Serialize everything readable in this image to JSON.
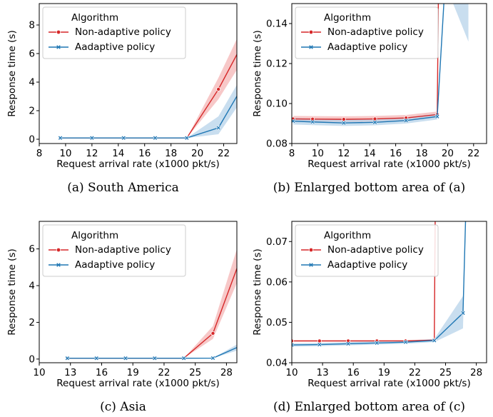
{
  "captions": [
    "(a) South America",
    "(b) Enlarged bottom area of (a)",
    "(c) Asia",
    "(d) Enlarged bottom area of (c)"
  ],
  "colors": {
    "non_adaptive": "#d62728",
    "adaptive": "#1f77b4",
    "non_adaptive_band": "#f4b6b6",
    "adaptive_band": "#b7d3ea"
  },
  "chart_data": [
    {
      "type": "line",
      "xlabel": "Request arrival rate (x1000 pkt/s)",
      "ylabel": "Response time (s)",
      "xlim": [
        8,
        23
      ],
      "ylim": [
        -0.3,
        9.5
      ],
      "xticks": [
        8,
        10,
        12,
        14,
        16,
        18,
        20,
        22
      ],
      "yticks": [
        0,
        2,
        4,
        6,
        8
      ],
      "ytick_labels": [
        "0",
        "2",
        "4",
        "6",
        "8"
      ],
      "legend": {
        "title": "Algorithm",
        "placement": "top-left"
      },
      "series": [
        {
          "name": "Non-adaptive policy",
          "color_key": "non_adaptive",
          "marker": "circle",
          "x": [
            9.6,
            12.0,
            14.4,
            16.8,
            19.2,
            21.6,
            23.5
          ],
          "y": [
            0.09,
            0.09,
            0.09,
            0.09,
            0.09,
            3.5,
            6.8
          ],
          "lower": [
            0.09,
            0.09,
            0.09,
            0.09,
            0.09,
            2.8,
            5.6
          ],
          "upper": [
            0.09,
            0.09,
            0.09,
            0.09,
            0.09,
            4.3,
            8.0
          ]
        },
        {
          "name": "Aadaptive policy",
          "color_key": "adaptive",
          "marker": "x",
          "x": [
            9.6,
            12.0,
            14.4,
            16.8,
            19.2,
            21.6,
            23.5
          ],
          "y": [
            0.09,
            0.09,
            0.09,
            0.09,
            0.09,
            0.8,
            3.8
          ],
          "lower": [
            0.09,
            0.09,
            0.09,
            0.09,
            0.09,
            0.35,
            2.9
          ],
          "upper": [
            0.09,
            0.09,
            0.09,
            0.09,
            0.09,
            1.6,
            4.6
          ]
        }
      ]
    },
    {
      "type": "line",
      "xlabel": "Request arrival rate (x1000 pkt/s)",
      "ylabel": "Response time (s)",
      "xlim": [
        8,
        23
      ],
      "ylim": [
        0.08,
        0.15
      ],
      "xticks": [
        8,
        10,
        12,
        14,
        16,
        18,
        20,
        22
      ],
      "yticks": [
        0.08,
        0.1,
        0.12,
        0.14
      ],
      "ytick_labels": [
        "0.08",
        "0.10",
        "0.12",
        "0.14"
      ],
      "legend": {
        "title": "Algorithm",
        "placement": "top-left"
      },
      "series": [
        {
          "name": "Non-adaptive policy",
          "color_key": "non_adaptive",
          "marker": "circle",
          "x": [
            8.1,
            9.6,
            12.0,
            14.4,
            16.8,
            19.2,
            19.3
          ],
          "y": [
            0.0923,
            0.0922,
            0.0921,
            0.0923,
            0.0928,
            0.0945,
            0.16
          ],
          "lower": [
            0.0908,
            0.0907,
            0.0906,
            0.0908,
            0.0913,
            0.093,
            0.16
          ],
          "upper": [
            0.0938,
            0.0937,
            0.0936,
            0.0938,
            0.0943,
            0.096,
            0.16
          ]
        },
        {
          "name": "Aadaptive policy",
          "color_key": "adaptive",
          "marker": "x",
          "x": [
            8.1,
            9.6,
            12.0,
            14.4,
            16.8,
            19.2,
            19.8
          ],
          "y": [
            0.0912,
            0.0908,
            0.0903,
            0.0906,
            0.0915,
            0.0935,
            0.16
          ],
          "lower": [
            0.0895,
            0.0892,
            0.0888,
            0.0891,
            0.09,
            0.092,
            0.16
          ],
          "upper": [
            0.0928,
            0.0924,
            0.0919,
            0.0921,
            0.093,
            0.095,
            0.16
          ],
          "band_tail": {
            "x": [
              19.2,
              19.8,
              21.6
            ],
            "lower": [
              0.092,
              0.16,
              0.131
            ],
            "upper": [
              0.095,
              0.16,
              0.16
            ]
          }
        }
      ]
    },
    {
      "type": "line",
      "xlabel": "Request arrival rate (x1000 pkt/s)",
      "ylabel": "Response time (s)",
      "xlim": [
        10,
        29
      ],
      "ylim": [
        -0.2,
        7.5
      ],
      "xticks": [
        10,
        13,
        16,
        19,
        22,
        25,
        28
      ],
      "yticks": [
        0,
        2,
        4,
        6
      ],
      "ytick_labels": [
        "0",
        "2",
        "4",
        "6"
      ],
      "legend": {
        "title": "Algorithm",
        "placement": "top-left"
      },
      "series": [
        {
          "name": "Non-adaptive policy",
          "color_key": "non_adaptive",
          "marker": "circle",
          "x": [
            12.7,
            15.5,
            18.3,
            21.1,
            23.9,
            26.7,
            29.5
          ],
          "y": [
            0.046,
            0.046,
            0.046,
            0.046,
            0.046,
            1.4,
            5.7
          ],
          "lower": [
            0.046,
            0.046,
            0.046,
            0.046,
            0.046,
            1.1,
            4.8
          ],
          "upper": [
            0.046,
            0.046,
            0.046,
            0.046,
            0.046,
            1.8,
            6.9
          ]
        },
        {
          "name": "Aadaptive policy",
          "color_key": "adaptive",
          "marker": "x",
          "x": [
            12.7,
            15.5,
            18.3,
            21.1,
            23.9,
            26.7,
            29.5
          ],
          "y": [
            0.045,
            0.045,
            0.045,
            0.045,
            0.046,
            0.052,
            0.75
          ],
          "lower": [
            0.045,
            0.045,
            0.045,
            0.045,
            0.046,
            0.048,
            0.55
          ],
          "upper": [
            0.045,
            0.045,
            0.045,
            0.045,
            0.046,
            0.058,
            0.95
          ]
        }
      ]
    },
    {
      "type": "line",
      "xlabel": "Request arrival rate (x1000 pkt/s)",
      "ylabel": "Response time (s)",
      "xlim": [
        10,
        29
      ],
      "ylim": [
        0.04,
        0.075
      ],
      "xticks": [
        10,
        13,
        16,
        19,
        22,
        25,
        28
      ],
      "yticks": [
        0.04,
        0.05,
        0.06,
        0.07
      ],
      "ytick_labels": [
        "0.04",
        "0.05",
        "0.06",
        "0.07"
      ],
      "legend": {
        "title": "Algorithm",
        "placement": "top-left"
      },
      "series": [
        {
          "name": "Non-adaptive policy",
          "color_key": "non_adaptive",
          "marker": "circle",
          "x": [
            10.0,
            12.7,
            15.5,
            18.3,
            21.1,
            23.9,
            24.0
          ],
          "y": [
            0.0454,
            0.0454,
            0.0454,
            0.0454,
            0.0454,
            0.0456,
            0.08
          ],
          "lower": [
            0.0452,
            0.0452,
            0.0452,
            0.0452,
            0.0452,
            0.0454,
            0.08
          ],
          "upper": [
            0.0456,
            0.0456,
            0.0456,
            0.0456,
            0.0456,
            0.0458,
            0.08
          ]
        },
        {
          "name": "Aadaptive policy",
          "color_key": "adaptive",
          "marker": "x",
          "x": [
            10.0,
            12.7,
            15.5,
            18.3,
            21.1,
            23.9,
            26.7,
            27.0
          ],
          "y": [
            0.0444,
            0.0445,
            0.0447,
            0.0449,
            0.0451,
            0.0455,
            0.0523,
            0.08
          ],
          "lower": [
            0.044,
            0.0441,
            0.0443,
            0.0445,
            0.0447,
            0.0451,
            0.0485,
            0.08
          ],
          "upper": [
            0.0448,
            0.0449,
            0.0451,
            0.0453,
            0.0455,
            0.0459,
            0.0565,
            0.08
          ]
        }
      ]
    }
  ]
}
